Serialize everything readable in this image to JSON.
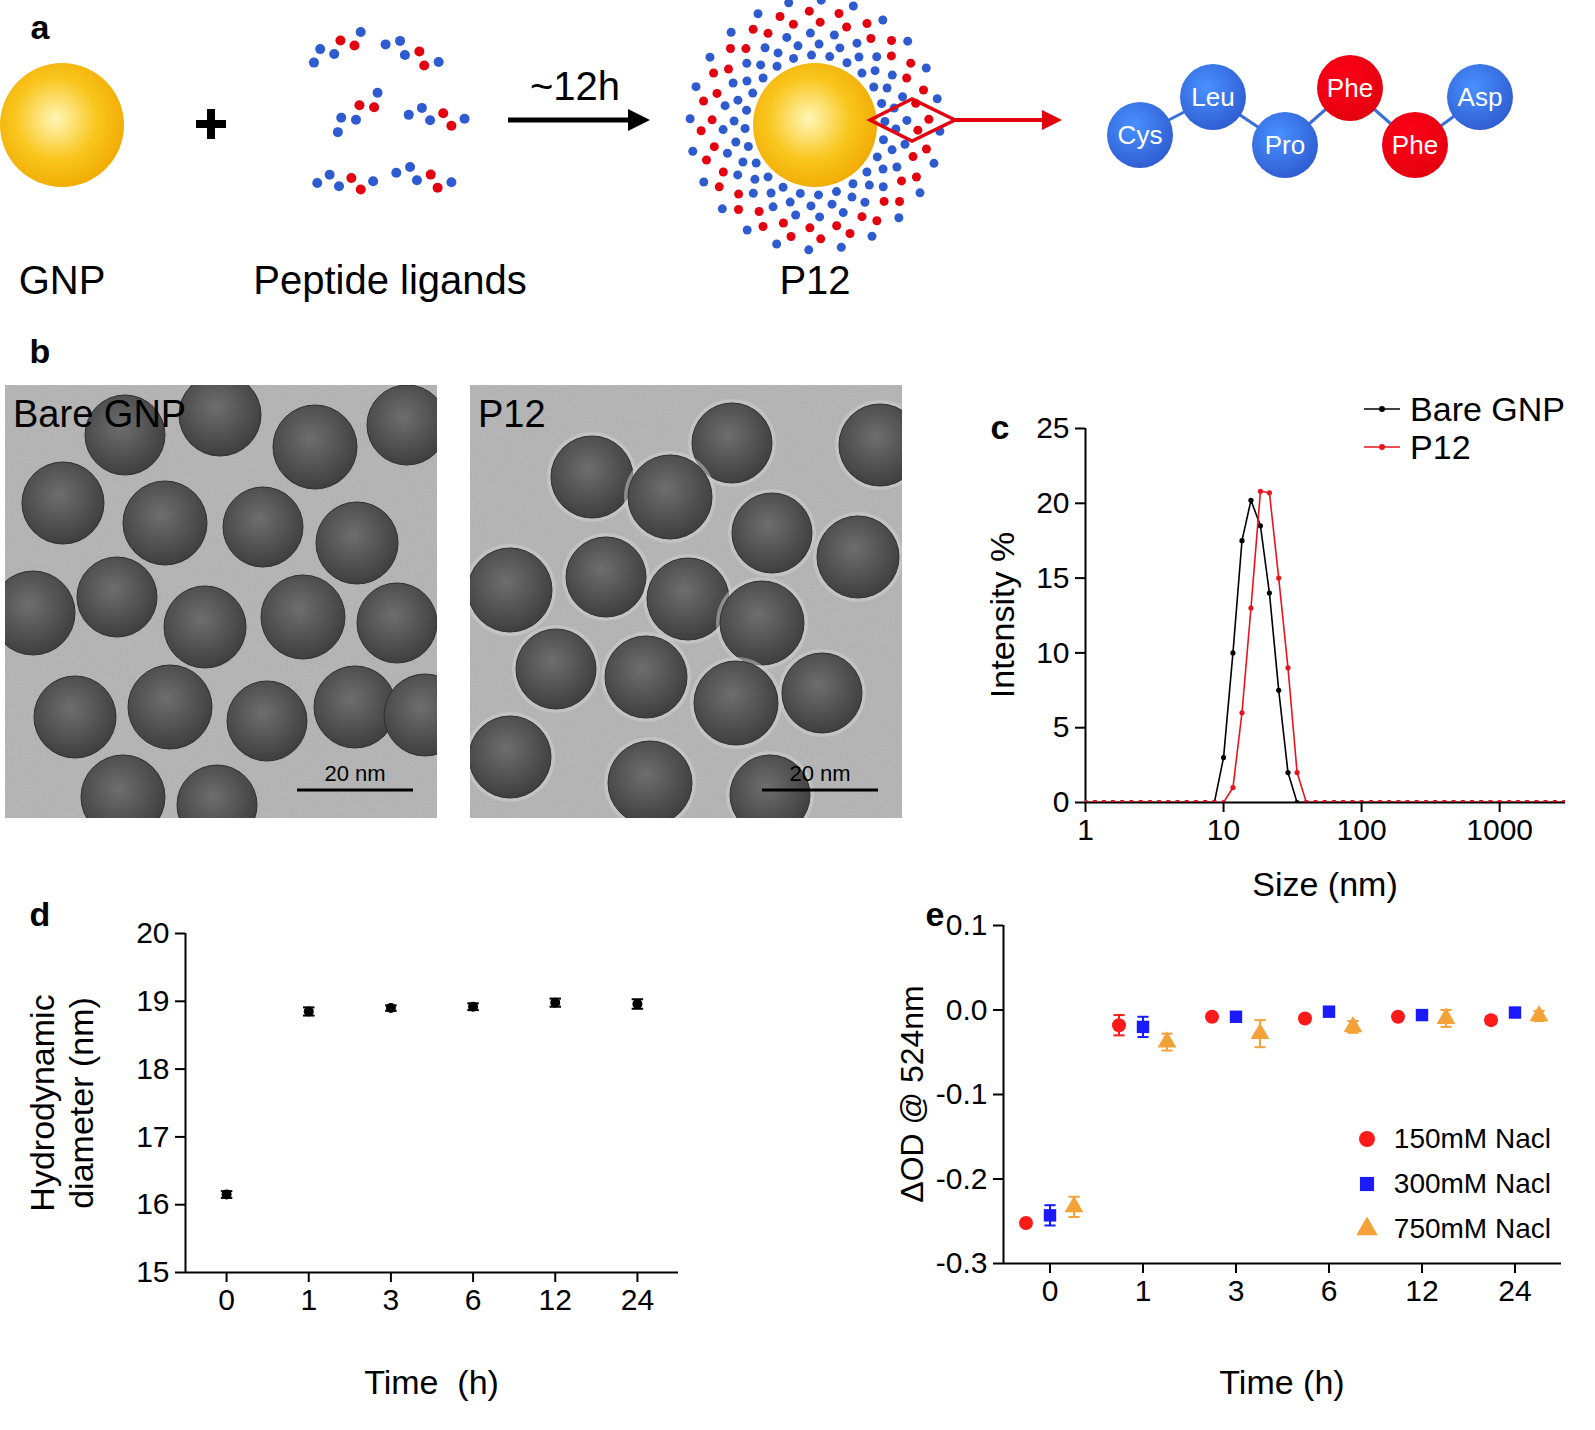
{
  "panel_labels": [
    "a",
    "b",
    "c",
    "d",
    "e"
  ],
  "schematic": {
    "items": [
      {
        "label": "GNP"
      },
      {
        "label": "Peptide ligands"
      },
      {
        "label": "P12"
      }
    ],
    "arrow_label": "~12h",
    "peptide": [
      {
        "label": "Cys",
        "color": "#2e5bd0"
      },
      {
        "label": "Leu",
        "color": "#2e5bd0"
      },
      {
        "label": "Pro",
        "color": "#2e5bd0"
      },
      {
        "label": "Phe",
        "color": "#e3000f"
      },
      {
        "label": "Phe",
        "color": "#e3000f"
      },
      {
        "label": "Asp",
        "color": "#2e5bd0"
      }
    ]
  },
  "images": [
    {
      "label": "Bare GNP",
      "scale_bar": "20 nm"
    },
    {
      "label": "P12",
      "scale_bar": "20 nm"
    }
  ],
  "chart_data": [
    {
      "type": "line",
      "marker": "circle",
      "x_label": "Size (nm)",
      "y_label": "Intensity %",
      "log": "x",
      "x": [
        1,
        1.17,
        1.36,
        1.58,
        1.84,
        2.15,
        2.51,
        2.93,
        3.41,
        3.98,
        4.64,
        5.41,
        6.31,
        7.36,
        8.58,
        10,
        11.7,
        13.6,
        15.8,
        18.5,
        21.5,
        25.1,
        29.3,
        34.1,
        39.8,
        46.4,
        54.1,
        63.1,
        73.6,
        85.8,
        100,
        117,
        136,
        158,
        185,
        215,
        251,
        293,
        341,
        398,
        464,
        541,
        631,
        736,
        858,
        1000,
        1170,
        1360,
        1580,
        1850,
        2150,
        2510,
        2930
      ],
      "series": [
        {
          "name": "Bare GNP",
          "color": "#000000",
          "values": [
            0,
            0,
            0,
            0,
            0,
            0,
            0,
            0,
            0,
            0,
            0,
            0,
            0,
            0,
            0,
            3,
            10,
            17.5,
            20.2,
            18.5,
            14,
            7.5,
            2,
            0,
            0,
            0,
            0,
            0,
            0,
            0,
            0,
            0,
            0,
            0,
            0,
            0,
            0,
            0,
            0,
            0,
            0,
            0,
            0,
            0,
            0,
            0,
            0,
            0,
            0,
            0,
            0,
            0,
            0
          ]
        },
        {
          "name": "P12",
          "color": "#e8141c",
          "values": [
            0,
            0,
            0,
            0,
            0,
            0,
            0,
            0,
            0,
            0,
            0,
            0,
            0,
            0,
            0,
            0,
            1,
            6,
            13,
            20.8,
            20.7,
            15,
            9,
            2,
            0,
            0,
            0,
            0,
            0,
            0,
            0,
            0,
            0,
            0,
            0,
            0,
            0,
            0,
            0,
            0,
            0,
            0,
            0,
            0,
            0,
            0,
            0,
            0,
            0,
            0,
            0,
            0,
            0
          ]
        }
      ],
      "xlim": [
        1,
        3000
      ],
      "xticks": [
        1,
        10,
        100,
        1000
      ],
      "ylim": [
        0,
        25
      ],
      "yticks": [
        0,
        5,
        10,
        15,
        20,
        25
      ],
      "legend": "top-right",
      "grid": false
    },
    {
      "type": "scatter",
      "x_label": "Time  (h)",
      "y_label": "Hydrodynamic\ndiameter (nm)",
      "categories": [
        "0",
        "1",
        "3",
        "6",
        "12",
        "24"
      ],
      "series": [
        {
          "color": "#000000",
          "marker": "circle",
          "values": [
            16.15,
            18.85,
            18.9,
            18.92,
            18.98,
            18.96
          ],
          "errors": [
            0.05,
            0.06,
            0.04,
            0.05,
            0.06,
            0.07
          ]
        }
      ],
      "ylim": [
        15,
        20
      ],
      "yticks": [
        15,
        16,
        17,
        18,
        19,
        20
      ],
      "grid": false
    },
    {
      "type": "scatter",
      "x_label": "Time (h)",
      "y_label": "ΔOD @ 524nm",
      "categories": [
        "0",
        "1",
        "3",
        "6",
        "12",
        "24"
      ],
      "series": [
        {
          "name": "150mM Nacl",
          "color": "#ff1a1a",
          "marker": "circle",
          "values": [
            -0.252,
            -0.018,
            -0.008,
            -0.01,
            -0.008,
            -0.012
          ],
          "errors": [
            0.003,
            0.012,
            0.003,
            0.004,
            0.003,
            0.004
          ]
        },
        {
          "name": "300mM Nacl",
          "color": "#1a1aff",
          "marker": "square",
          "values": [
            -0.243,
            -0.02,
            -0.008,
            -0.002,
            -0.006,
            -0.003
          ],
          "errors": [
            0.012,
            0.012,
            0.004,
            0.003,
            0.004,
            0.003
          ]
        },
        {
          "name": "750mM Nacl",
          "color": "#f4a13a",
          "marker": "triangle",
          "values": [
            -0.233,
            -0.038,
            -0.028,
            -0.02,
            -0.01,
            -0.007
          ],
          "errors": [
            0.012,
            0.01,
            0.016,
            0.007,
            0.01,
            0.006
          ]
        }
      ],
      "ylim": [
        -0.3,
        0.1
      ],
      "yticks": [
        -0.3,
        -0.2,
        -0.1,
        {
          "value": 0,
          "label": "0.0"
        },
        0.1
      ],
      "legend": "bottom-right",
      "grid": false
    }
  ]
}
